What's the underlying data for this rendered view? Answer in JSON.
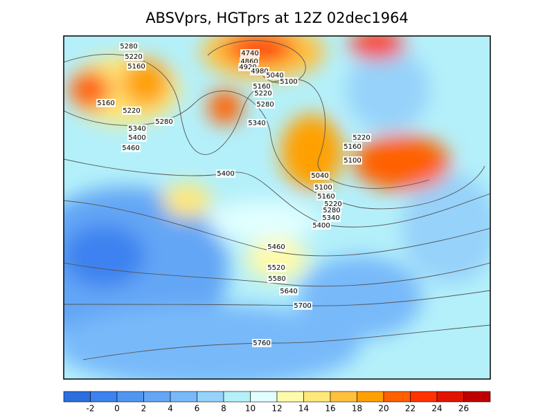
{
  "title": "ABSVprs, HGTprs at 12Z  02dec1964",
  "contour_labels": [
    "5280",
    "5220",
    "5160",
    "4740",
    "4860",
    "4920",
    "4980",
    "5040",
    "5100",
    "5160",
    "5220",
    "5280",
    "5340",
    "5160",
    "5220",
    "5280",
    "5340",
    "5400",
    "5460",
    "5400",
    "5220",
    "5160",
    "5100",
    "5040",
    "5100",
    "5160",
    "5220",
    "5280",
    "5340",
    "5400",
    "5460",
    "5520",
    "5580",
    "5640",
    "5700",
    "5760"
  ],
  "colorbar": {
    "ticks": [
      -2,
      0,
      2,
      4,
      6,
      8,
      10,
      12,
      14,
      16,
      18,
      20,
      22,
      24,
      26
    ],
    "colors": [
      "#2a6ee0",
      "#3c82f0",
      "#5096f0",
      "#64a6f5",
      "#78b9fa",
      "#96d2fa",
      "#b4f0fa",
      "#e1ffff",
      "#fffaaa",
      "#ffe878",
      "#ffc03c",
      "#ffa000",
      "#ff6000",
      "#ff3200",
      "#e11400",
      "#c00000"
    ]
  }
}
